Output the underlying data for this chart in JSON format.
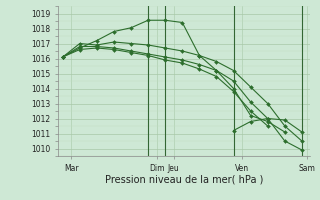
{
  "xlabel": "Pression niveau de la mer( hPa )",
  "background_color": "#cee8d5",
  "grid_color_major": "#a8c8a8",
  "grid_color_minor": "#c0dcc0",
  "line_color": "#2d6e2d",
  "vline_color": "#336633",
  "ylim": [
    1009.5,
    1019.5
  ],
  "xlim": [
    -0.3,
    14.5
  ],
  "series": [
    {
      "x": [
        0,
        1,
        2,
        3,
        4,
        5,
        6,
        7,
        8,
        9,
        10,
        11,
        12,
        13
      ],
      "y": [
        1016.1,
        1016.7,
        1017.2,
        1017.8,
        1018.05,
        1018.55,
        1018.55,
        1018.4,
        1016.2,
        1015.2,
        1014.0,
        1012.2,
        1011.8,
        1011.1
      ]
    },
    {
      "x": [
        0,
        1,
        2,
        3,
        4,
        5,
        6,
        7,
        8,
        9,
        10,
        11,
        12,
        13,
        14
      ],
      "y": [
        1016.1,
        1017.0,
        1016.9,
        1017.1,
        1017.0,
        1016.9,
        1016.7,
        1016.5,
        1016.2,
        1015.8,
        1015.2,
        1014.1,
        1013.0,
        1011.5,
        1010.5
      ]
    },
    {
      "x": [
        0,
        1,
        2,
        3,
        4,
        5,
        6,
        7,
        8,
        9,
        10,
        11,
        12,
        13,
        14
      ],
      "y": [
        1016.1,
        1016.8,
        1016.8,
        1016.7,
        1016.5,
        1016.3,
        1016.1,
        1015.9,
        1015.6,
        1015.2,
        1014.5,
        1013.1,
        1012.0,
        1010.5,
        1009.9
      ]
    },
    {
      "x": [
        0,
        1,
        2,
        3,
        4,
        5,
        6,
        7,
        8,
        9,
        10,
        11,
        12
      ],
      "y": [
        1016.1,
        1016.6,
        1016.7,
        1016.6,
        1016.4,
        1016.2,
        1015.9,
        1015.7,
        1015.3,
        1014.8,
        1013.8,
        1012.5,
        1011.5
      ]
    },
    {
      "x": [
        10,
        11,
        12,
        13,
        14
      ],
      "y": [
        1011.2,
        1011.8,
        1012.0,
        1011.9,
        1011.1
      ]
    }
  ],
  "day_vlines": [
    5,
    6,
    10,
    14
  ],
  "xtick_positions": [
    0.5,
    5.5,
    6.5,
    10.5,
    14.3
  ],
  "xtick_labels": [
    "Mar",
    "Dim",
    "Jeu",
    "Ven",
    "Sam"
  ],
  "yticks": [
    1010,
    1011,
    1012,
    1013,
    1014,
    1015,
    1016,
    1017,
    1018,
    1019
  ],
  "ylabel_fontsize": 5.5,
  "xlabel_fontsize": 7,
  "xtick_fontsize": 5.5
}
